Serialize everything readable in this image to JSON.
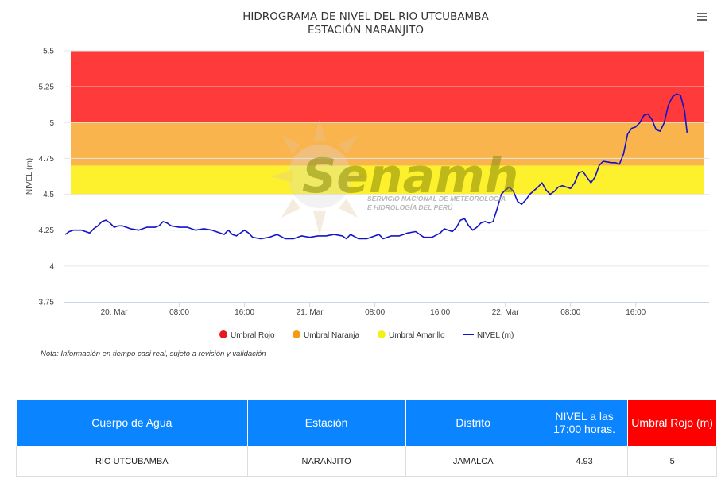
{
  "chart_data": {
    "type": "line",
    "title": "HIDROGRAMA DE NIVEL DEL RIO UTCUBAMBA",
    "subtitle": "ESTACIÓN NARANJITO",
    "ylabel": "NIVEL (m)",
    "xlabel": "",
    "ylim": [
      3.75,
      5.5
    ],
    "yticks": [
      "3.75",
      "4",
      "4.25",
      "4.5",
      "4.75",
      "5",
      "5.25",
      "5.5"
    ],
    "xticks": [
      {
        "label": "20. Mar",
        "h": 12
      },
      {
        "label": "08:00",
        "h": 20
      },
      {
        "label": "16:00",
        "h": 28
      },
      {
        "label": "21. Mar",
        "h": 36
      },
      {
        "label": "08:00",
        "h": 44
      },
      {
        "label": "16:00",
        "h": 52
      },
      {
        "label": "22. Mar",
        "h": 60
      },
      {
        "label": "08:00",
        "h": 68
      },
      {
        "label": "16:00",
        "h": 76
      }
    ],
    "xlim_hours": [
      5.8,
      85
    ],
    "bands": [
      {
        "name": "Umbral Rojo",
        "from": 5.0,
        "to": 5.5,
        "color": "#ff3a3a",
        "legend_color": "#e6181c"
      },
      {
        "name": "Umbral Naranja",
        "from": 4.7,
        "to": 5.0,
        "color": "#fab44e",
        "legend_color": "#f69a12"
      },
      {
        "name": "Umbral Amarillo",
        "from": 4.5,
        "to": 4.7,
        "color": "#fcf12c",
        "legend_color": "#f5ef1b"
      }
    ],
    "series": [
      {
        "name": "NIVEL (m)",
        "color": "#1212c8",
        "points": [
          [
            6.0,
            4.22
          ],
          [
            6.5,
            4.24
          ],
          [
            7.0,
            4.25
          ],
          [
            8.0,
            4.25
          ],
          [
            8.5,
            4.24
          ],
          [
            9.0,
            4.23
          ],
          [
            9.5,
            4.26
          ],
          [
            10.0,
            4.28
          ],
          [
            10.5,
            4.31
          ],
          [
            11.0,
            4.32
          ],
          [
            11.5,
            4.3
          ],
          [
            12.0,
            4.27
          ],
          [
            12.5,
            4.28
          ],
          [
            13.0,
            4.28
          ],
          [
            14.0,
            4.26
          ],
          [
            15.0,
            4.25
          ],
          [
            16.0,
            4.27
          ],
          [
            17.0,
            4.27
          ],
          [
            17.5,
            4.28
          ],
          [
            18.0,
            4.31
          ],
          [
            18.5,
            4.3
          ],
          [
            19.0,
            4.28
          ],
          [
            20.0,
            4.27
          ],
          [
            21.0,
            4.27
          ],
          [
            22.0,
            4.25
          ],
          [
            23.0,
            4.26
          ],
          [
            24.0,
            4.25
          ],
          [
            25.0,
            4.23
          ],
          [
            25.5,
            4.22
          ],
          [
            26.0,
            4.25
          ],
          [
            26.5,
            4.22
          ],
          [
            27.0,
            4.21
          ],
          [
            28.0,
            4.25
          ],
          [
            28.5,
            4.23
          ],
          [
            29.0,
            4.2
          ],
          [
            30.0,
            4.19
          ],
          [
            31.0,
            4.2
          ],
          [
            32.0,
            4.22
          ],
          [
            33.0,
            4.19
          ],
          [
            34.0,
            4.19
          ],
          [
            35.0,
            4.21
          ],
          [
            36.0,
            4.2
          ],
          [
            37.0,
            4.21
          ],
          [
            38.0,
            4.21
          ],
          [
            39.0,
            4.22
          ],
          [
            40.0,
            4.21
          ],
          [
            40.5,
            4.19
          ],
          [
            41.0,
            4.22
          ],
          [
            42.0,
            4.19
          ],
          [
            43.0,
            4.19
          ],
          [
            44.0,
            4.21
          ],
          [
            44.5,
            4.22
          ],
          [
            45.0,
            4.19
          ],
          [
            46.0,
            4.21
          ],
          [
            47.0,
            4.21
          ],
          [
            48.0,
            4.23
          ],
          [
            49.0,
            4.24
          ],
          [
            50.0,
            4.2
          ],
          [
            51.0,
            4.2
          ],
          [
            52.0,
            4.23
          ],
          [
            52.5,
            4.26
          ],
          [
            53.0,
            4.25
          ],
          [
            53.5,
            4.24
          ],
          [
            54.0,
            4.27
          ],
          [
            54.5,
            4.32
          ],
          [
            55.0,
            4.33
          ],
          [
            55.5,
            4.28
          ],
          [
            56.0,
            4.25
          ],
          [
            56.5,
            4.27
          ],
          [
            57.0,
            4.3
          ],
          [
            57.5,
            4.31
          ],
          [
            58.0,
            4.3
          ],
          [
            58.5,
            4.31
          ],
          [
            59.0,
            4.4
          ],
          [
            59.5,
            4.5
          ],
          [
            60.0,
            4.53
          ],
          [
            60.5,
            4.55
          ],
          [
            61.0,
            4.52
          ],
          [
            61.5,
            4.45
          ],
          [
            62.0,
            4.43
          ],
          [
            62.5,
            4.46
          ],
          [
            63.0,
            4.5
          ],
          [
            64.0,
            4.55
          ],
          [
            64.5,
            4.58
          ],
          [
            65.0,
            4.53
          ],
          [
            65.5,
            4.5
          ],
          [
            66.0,
            4.52
          ],
          [
            66.5,
            4.55
          ],
          [
            67.0,
            4.56
          ],
          [
            67.5,
            4.55
          ],
          [
            68.0,
            4.54
          ],
          [
            68.5,
            4.58
          ],
          [
            69.0,
            4.65
          ],
          [
            69.5,
            4.66
          ],
          [
            70.0,
            4.62
          ],
          [
            70.5,
            4.58
          ],
          [
            71.0,
            4.62
          ],
          [
            71.5,
            4.7
          ],
          [
            72.0,
            4.73
          ],
          [
            73.0,
            4.72
          ],
          [
            73.5,
            4.72
          ],
          [
            74.0,
            4.71
          ],
          [
            74.5,
            4.78
          ],
          [
            75.0,
            4.92
          ],
          [
            75.5,
            4.96
          ],
          [
            76.0,
            4.97
          ],
          [
            76.5,
            5.0
          ],
          [
            77.0,
            5.05
          ],
          [
            77.5,
            5.06
          ],
          [
            78.0,
            5.02
          ],
          [
            78.5,
            4.95
          ],
          [
            79.0,
            4.94
          ],
          [
            79.5,
            5.0
          ],
          [
            80.0,
            5.12
          ],
          [
            80.5,
            5.18
          ],
          [
            81.0,
            5.2
          ],
          [
            81.5,
            5.19
          ],
          [
            82.0,
            5.08
          ],
          [
            82.3,
            4.93
          ]
        ]
      }
    ],
    "legend_placement": "bottom",
    "grid": "horizontal"
  },
  "legend": [
    {
      "label": "Umbral Rojo",
      "color": "#e6181c",
      "marker": "circle"
    },
    {
      "label": "Umbral Naranja",
      "color": "#f69a12",
      "marker": "circle"
    },
    {
      "label": "Umbral Amarillo",
      "color": "#f5ef1b",
      "marker": "circle"
    },
    {
      "label": "NIVEL (m)",
      "color": "#1212c8",
      "marker": "line"
    }
  ],
  "note": "Nota: Información en tiempo casi real, sujeto a revisión y validación",
  "menu_icon": "hamburger-menu-icon",
  "watermark": {
    "brand": "Senamhi",
    "line1": "SERVICIO NACIONAL DE METEOROLOGÍA",
    "line2": "E HIDROLOGÍA DEL PERÚ"
  },
  "table": {
    "headers": [
      "Cuerpo de Agua",
      "Estación",
      "Distrito",
      "NIVEL a las 17:00 horas.",
      "Umbral Rojo (m)"
    ],
    "row": [
      "RIO UTCUBAMBA",
      "NARANJITO",
      "JAMALCA",
      "4.93",
      "5"
    ]
  }
}
